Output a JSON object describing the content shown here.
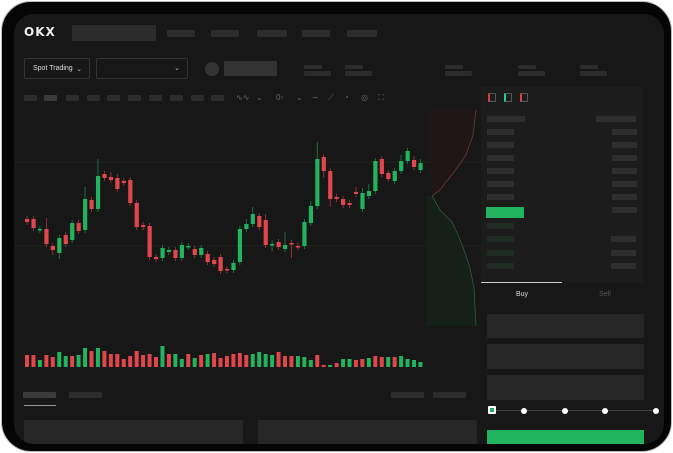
{
  "brand": "OKX",
  "header": {
    "mode_selector": "Spot Trading",
    "pair_selector": ""
  },
  "trade_panel": {
    "tabs": [
      "Buy",
      "Sell"
    ],
    "active_tab": "Buy",
    "leverage_slider_value": 0,
    "slider_steps": 5
  },
  "colors": {
    "up": "#22b35e",
    "down": "#e0474c",
    "background": "#171717",
    "panel": "#1d1d1d"
  },
  "icons": [
    "indicator-icon",
    "chart-type-icon",
    "line-tool-icon",
    "pen-icon",
    "camera-icon",
    "settings-icon",
    "fullscreen-icon",
    "book-both-icon",
    "book-bids-icon",
    "book-asks-icon"
  ],
  "chart_data": {
    "type": "candlestick",
    "title": "",
    "candles_ohlc_fields": [
      "open",
      "close",
      "high",
      "low"
    ],
    "candles": [
      [
        95,
        92,
        98,
        89
      ],
      [
        95,
        86,
        98,
        83
      ],
      [
        84,
        85,
        88,
        81
      ],
      [
        85,
        70,
        96,
        67
      ],
      [
        68,
        64,
        71,
        59
      ],
      [
        61,
        76,
        79,
        55
      ],
      [
        79,
        70,
        82,
        67
      ],
      [
        74,
        91,
        94,
        71
      ],
      [
        91,
        83,
        94,
        80
      ],
      [
        84,
        115,
        127,
        81
      ],
      [
        114,
        105,
        117,
        102
      ],
      [
        105,
        138,
        155,
        102
      ],
      [
        140,
        136,
        143,
        133
      ],
      [
        137,
        134,
        142,
        131
      ],
      [
        136,
        125,
        140,
        122
      ],
      [
        133,
        131,
        136,
        128
      ],
      [
        134,
        111,
        137,
        108
      ],
      [
        111,
        87,
        114,
        84
      ],
      [
        89,
        87,
        92,
        84
      ],
      [
        88,
        57,
        91,
        54
      ],
      [
        57,
        55,
        60,
        52
      ],
      [
        56,
        66,
        69,
        53
      ],
      [
        62,
        64,
        67,
        59
      ],
      [
        64,
        56,
        67,
        53
      ],
      [
        56,
        69,
        72,
        53
      ],
      [
        67,
        68,
        71,
        64
      ],
      [
        65,
        59,
        68,
        56
      ],
      [
        59,
        66,
        69,
        56
      ],
      [
        60,
        52,
        63,
        49
      ],
      [
        54,
        50,
        57,
        47
      ],
      [
        57,
        43,
        60,
        40
      ],
      [
        45,
        44,
        48,
        41
      ],
      [
        44,
        51,
        54,
        41
      ],
      [
        52,
        85,
        88,
        49
      ],
      [
        85,
        90,
        95,
        82
      ],
      [
        90,
        100,
        107,
        87
      ],
      [
        98,
        87,
        101,
        84
      ],
      [
        94,
        69,
        100,
        66
      ],
      [
        69,
        70,
        74,
        63
      ],
      [
        72,
        67,
        75,
        64
      ],
      [
        65,
        69,
        82,
        62
      ],
      [
        71,
        70,
        74,
        56
      ],
      [
        68,
        67,
        71,
        64
      ],
      [
        68,
        92,
        95,
        65
      ],
      [
        91,
        108,
        113,
        88
      ],
      [
        108,
        155,
        172,
        105
      ],
      [
        157,
        143,
        160,
        136
      ],
      [
        143,
        115,
        146,
        107
      ],
      [
        117,
        115,
        120,
        112
      ],
      [
        115,
        109,
        118,
        106
      ],
      [
        111,
        109,
        114,
        106
      ],
      [
        122,
        120,
        127,
        117
      ],
      [
        105,
        121,
        126,
        102
      ],
      [
        118,
        123,
        130,
        115
      ],
      [
        123,
        153,
        156,
        120
      ],
      [
        155,
        140,
        158,
        137
      ],
      [
        141,
        135,
        144,
        132
      ],
      [
        133,
        143,
        146,
        130
      ],
      [
        143,
        153,
        159,
        140
      ],
      [
        153,
        163,
        166,
        150
      ],
      [
        154,
        147,
        158,
        144
      ],
      [
        144,
        151,
        155,
        141
      ]
    ],
    "volumes": [
      12,
      12,
      7,
      12,
      10,
      15,
      11,
      11,
      12,
      19,
      16,
      19,
      16,
      13,
      13,
      8,
      11,
      16,
      12,
      13,
      10,
      21,
      13,
      13,
      8,
      13,
      9,
      12,
      13,
      14,
      9,
      11,
      13,
      14,
      12,
      13,
      15,
      13,
      12,
      15,
      11,
      11,
      11,
      10,
      7,
      12,
      2,
      2,
      4,
      8,
      8,
      7,
      8,
      9,
      11,
      10,
      10,
      10,
      11,
      8,
      7,
      5
    ],
    "volume_up": [
      0,
      0,
      1,
      0,
      0,
      1,
      1,
      0,
      1,
      1,
      0,
      1,
      0,
      0,
      0,
      0,
      0,
      0,
      0,
      0,
      0,
      1,
      0,
      1,
      1,
      0,
      1,
      0,
      1,
      0,
      0,
      0,
      0,
      0,
      0,
      1,
      1,
      1,
      1,
      0,
      0,
      0,
      1,
      1,
      1,
      0,
      0,
      1,
      0,
      1,
      1,
      0,
      0,
      1,
      0,
      0,
      1,
      0,
      1,
      1,
      1,
      1
    ]
  }
}
